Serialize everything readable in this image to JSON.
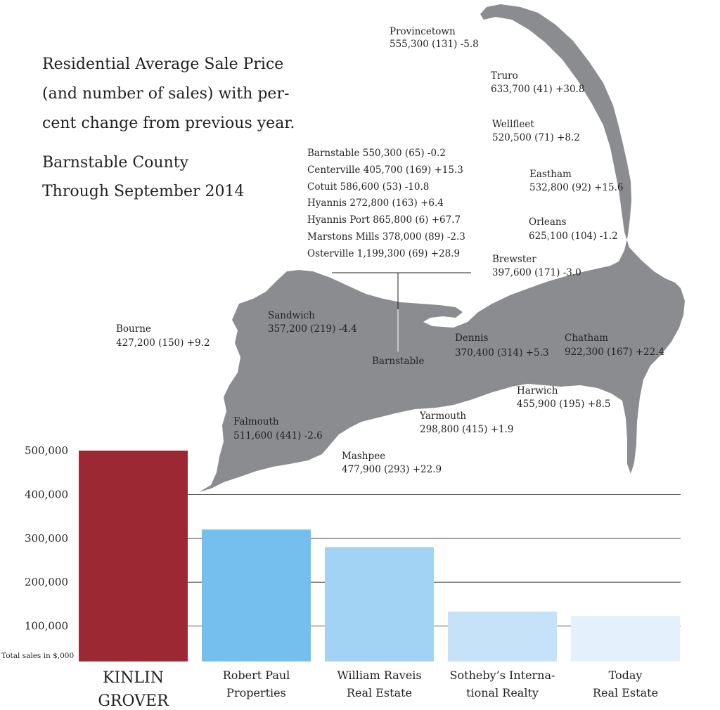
{
  "title_lines": [
    "Residential Average Sale Price",
    "(and number of sales) with per-",
    "cent change from previous year."
  ],
  "subtitle_lines": [
    "Barnstable County",
    "Through September 2014"
  ],
  "map": {
    "fill_color": "#8a8c8f",
    "towns": [
      {
        "name": "Provincetown",
        "value": "555,300 (131) -5.8"
      },
      {
        "name": "Truro",
        "value": "633,700 (41) +30.8"
      },
      {
        "name": "Wellfleet",
        "value": "520,500 (71)  +8.2"
      },
      {
        "name": "Eastham",
        "value": "532,800 (92)  +15.6"
      },
      {
        "name": "Orleans",
        "value": "625,100 (104)  -1.2"
      },
      {
        "name": "Brewster",
        "value": "397,600 (171) -3.0"
      },
      {
        "name": "Chatham",
        "value": "922,300 (167)  +22.4"
      },
      {
        "name": "Harwich",
        "value": "455,900 (195) +8.5"
      },
      {
        "name": "Dennis",
        "value": "370,400 (314)  +5.3"
      },
      {
        "name": "Yarmouth",
        "value": "298,800 (415) +1.9"
      },
      {
        "name": "Mashpee",
        "value": "477,900 (293)  +22.9"
      },
      {
        "name": "Falmouth",
        "value": "511,600 (441)  -2.6"
      },
      {
        "name": "Sandwich",
        "value": "357,200 (219)  -4.4"
      },
      {
        "name": "Bourne",
        "value": "427,200 (150)  +9.2"
      }
    ],
    "barnstable_label": "Barnstable",
    "barnstable_villages": [
      "Barnstable  550,300 (65) -0.2",
      "Centerville  405,700 (169) +15.3",
      "Cotuit  586,600 (53) -10.8",
      "Hyannis  272,800 (163) +6.4",
      "Hyannis Port  865,800 (6)  +67.7",
      "Marstons Mills  378,000 (89) -2.3",
      "Osterville  1,199,300 (69) +28.9"
    ]
  },
  "chart_data": {
    "type": "bar",
    "categories": [
      [
        "KINLIN",
        "GROVER"
      ],
      [
        "Robert Paul",
        "Properties"
      ],
      [
        "William Raveis",
        "Real Estate"
      ],
      [
        "Sotheby’s Interna-",
        "tional Realty"
      ],
      [
        "Today",
        "Real Estate"
      ]
    ],
    "values": [
      500000,
      320000,
      280000,
      133000,
      123000
    ],
    "colors": [
      "#9c2833",
      "#74bfee",
      "#a2d2f4",
      "#c6e2f8",
      "#e4f1fc"
    ],
    "yticks": [
      100000,
      200000,
      300000,
      400000,
      500000
    ],
    "ytick_labels": [
      "100,000",
      "200,000",
      "300,000",
      "400,000",
      "500,000"
    ],
    "ylim": [
      0,
      500000
    ],
    "ylabel": "Total sales in $,000",
    "grid": true
  }
}
